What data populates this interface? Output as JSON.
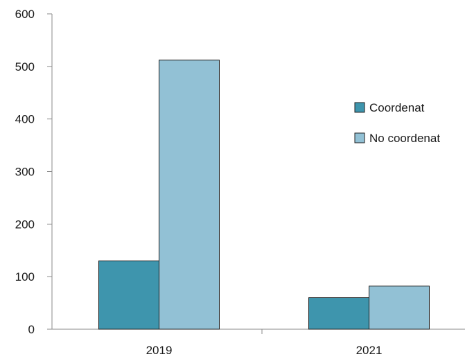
{
  "chart_data": {
    "type": "bar",
    "categories": [
      "2019",
      "2021"
    ],
    "series": [
      {
        "name": "Coordenat",
        "values": [
          130,
          60
        ],
        "color": "#3e95ad"
      },
      {
        "name": "No coordenat",
        "values": [
          512,
          82
        ],
        "color": "#92c1d5"
      }
    ],
    "ylim": [
      0,
      600
    ],
    "yticks": [
      0,
      100,
      200,
      300,
      400,
      500,
      600
    ],
    "title": "",
    "xlabel": "",
    "ylabel": "",
    "grid": false,
    "legend_position": "right"
  }
}
